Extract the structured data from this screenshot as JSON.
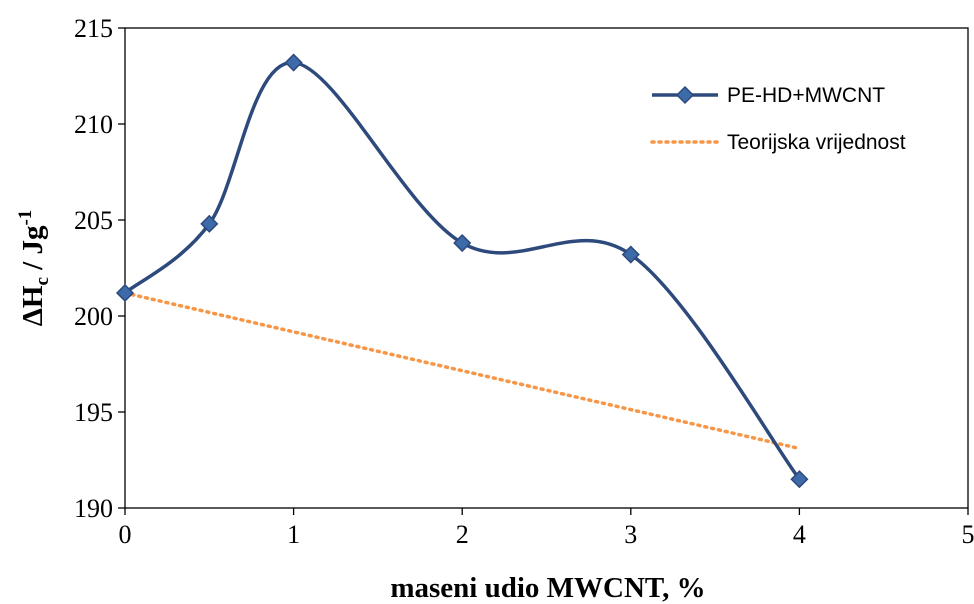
{
  "chart_data": {
    "type": "line",
    "xlabel": "maseni udio MWCNT, %",
    "ylabel_parts": {
      "delta": "Δ",
      "h": "H",
      "sub": "c",
      "slash": " / Jg",
      "sup": "-1"
    },
    "xlim": [
      0,
      5
    ],
    "ylim": [
      190,
      215
    ],
    "xticks": [
      "0",
      "1",
      "2",
      "3",
      "4",
      "5"
    ],
    "yticks": [
      "190",
      "195",
      "200",
      "205",
      "210",
      "215"
    ],
    "grid": false,
    "legend_position": "top-right",
    "series": [
      {
        "name": "PE-HD+MWCNT",
        "style": "smooth-line-diamond-markers",
        "color": "#2E4A7D",
        "marker_color": "#3D6AA8",
        "x": [
          0,
          0.5,
          1,
          2,
          3,
          4
        ],
        "y": [
          201.2,
          204.8,
          213.2,
          203.8,
          203.2,
          191.5
        ]
      },
      {
        "name": "Teorijska vrijednost",
        "style": "dotted-line",
        "color": "#F79646",
        "x": [
          0,
          4
        ],
        "y": [
          201.2,
          193.1
        ]
      }
    ]
  }
}
